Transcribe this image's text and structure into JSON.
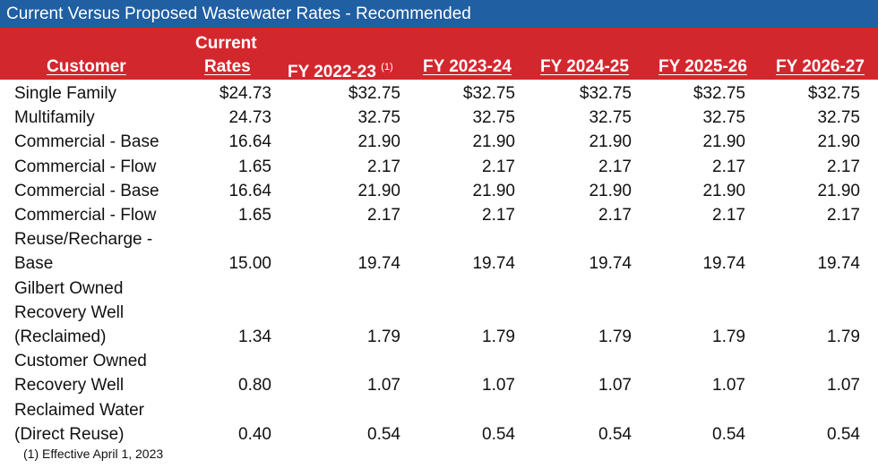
{
  "title": "Current Versus Proposed Wastewater Rates - Recommended",
  "header": {
    "customer": "Customer",
    "current_line1": "Current",
    "current_line2": "Rates",
    "fy1": "FY 2022-23",
    "fy1_note": "(1)",
    "fy2": "FY 2023-24",
    "fy3": "FY 2024-25",
    "fy4": "FY 2025-26",
    "fy5": "FY 2026-27"
  },
  "rows": [
    {
      "name": [
        "Single Family"
      ],
      "values": [
        "$24.73",
        "$32.75",
        "$32.75",
        "$32.75",
        "$32.75",
        "$32.75"
      ]
    },
    {
      "name": [
        "Multifamily"
      ],
      "values": [
        "24.73",
        "32.75",
        "32.75",
        "32.75",
        "32.75",
        "32.75"
      ]
    },
    {
      "name": [
        "Commercial - Base"
      ],
      "values": [
        "16.64",
        "21.90",
        "21.90",
        "21.90",
        "21.90",
        "21.90"
      ]
    },
    {
      "name": [
        "Commercial - Flow"
      ],
      "values": [
        "1.65",
        "2.17",
        "2.17",
        "2.17",
        "2.17",
        "2.17"
      ]
    },
    {
      "name": [
        "Commercial - Base"
      ],
      "values": [
        "16.64",
        "21.90",
        "21.90",
        "21.90",
        "21.90",
        "21.90"
      ]
    },
    {
      "name": [
        "Commercial - Flow"
      ],
      "values": [
        "1.65",
        "2.17",
        "2.17",
        "2.17",
        "2.17",
        "2.17"
      ]
    },
    {
      "name": [
        "Reuse/Recharge -",
        "Base"
      ],
      "values": [
        "15.00",
        "19.74",
        "19.74",
        "19.74",
        "19.74",
        "19.74"
      ]
    },
    {
      "name": [
        "Gilbert Owned",
        "Recovery Well",
        "(Reclaimed)"
      ],
      "values": [
        "1.34",
        "1.79",
        "1.79",
        "1.79",
        "1.79",
        "1.79"
      ]
    },
    {
      "name": [
        "Customer Owned",
        "Recovery Well"
      ],
      "values": [
        "0.80",
        "1.07",
        "1.07",
        "1.07",
        "1.07",
        "1.07"
      ]
    },
    {
      "name": [
        "Reclaimed Water",
        "(Direct Reuse)"
      ],
      "values": [
        "0.40",
        "0.54",
        "0.54",
        "0.54",
        "0.54",
        "0.54"
      ]
    }
  ],
  "footnote": "(1)   Effective April 1, 2023"
}
